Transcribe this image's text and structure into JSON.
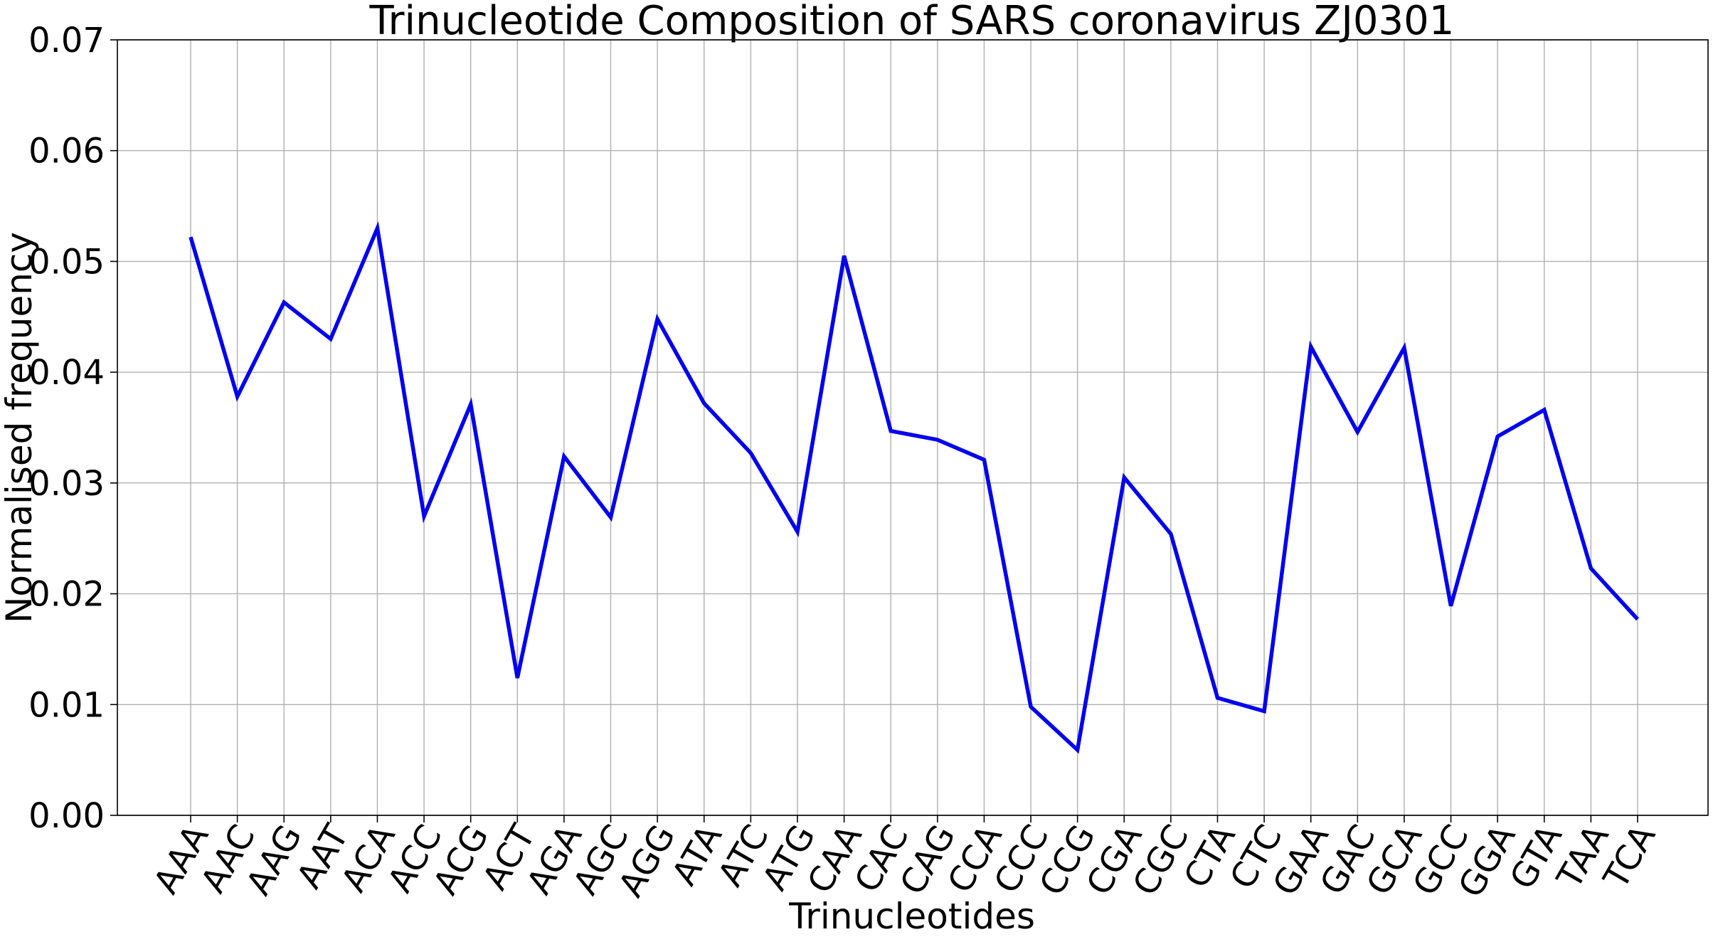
{
  "chart_data": {
    "type": "line",
    "title": "Trinucleotide Composition of SARS coronavirus ZJ0301",
    "xlabel": "Trinucleotides",
    "ylabel": "Normalised frequency",
    "ylim": [
      0,
      0.07
    ],
    "yticks": [
      "0.00",
      "0.01",
      "0.02",
      "0.03",
      "0.04",
      "0.05",
      "0.06",
      "0.07"
    ],
    "grid": true,
    "categories": [
      "AAA",
      "AAC",
      "AAG",
      "AAT",
      "ACA",
      "ACC",
      "ACG",
      "ACT",
      "AGA",
      "AGC",
      "AGG",
      "ATA",
      "ATC",
      "ATG",
      "CAA",
      "CAC",
      "CAG",
      "CCA",
      "CCC",
      "CCG",
      "CGA",
      "CGC",
      "CTA",
      "CTC",
      "GAA",
      "GAC",
      "GCA",
      "GCC",
      "GGA",
      "GTA",
      "TAA",
      "TCA"
    ],
    "series": [
      {
        "color": "#0000ee",
        "values": [
          0.0522,
          0.0378,
          0.0463,
          0.043,
          0.053,
          0.027,
          0.0371,
          0.0124,
          0.0324,
          0.0269,
          0.0448,
          0.0372,
          0.0327,
          0.0256,
          0.0505,
          0.0347,
          0.0339,
          0.0321,
          0.0098,
          0.0059,
          0.0305,
          0.0254,
          0.0106,
          0.0094,
          0.0423,
          0.0346,
          0.0422,
          0.0189,
          0.0342,
          0.0366,
          0.0223,
          0.0177
        ]
      }
    ]
  }
}
